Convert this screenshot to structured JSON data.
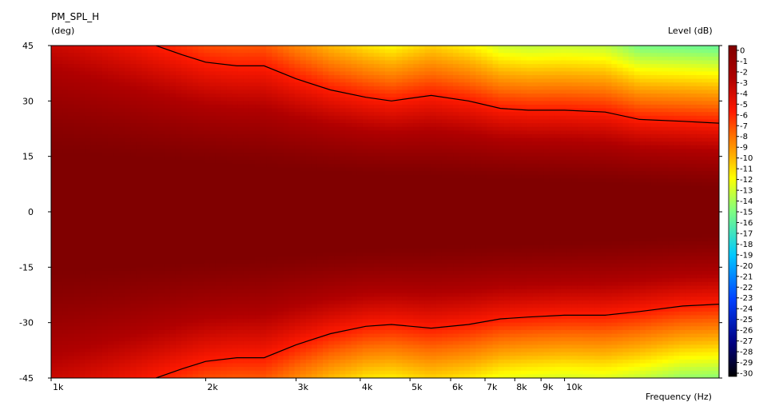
{
  "chart_data": {
    "type": "heatmap",
    "title": "PM_SPL_H",
    "ylabel": "(deg)",
    "xlabel": "Frequency  (Hz)",
    "colorbar_label": "Level  (dB)",
    "x_scale": "log",
    "xlim": [
      1000,
      20000
    ],
    "ylim": [
      -45,
      45
    ],
    "y_ticks": [
      45,
      30,
      15,
      0,
      -15,
      -30,
      -45
    ],
    "x_ticks": [
      {
        "value": 1000,
        "label": "1k"
      },
      {
        "value": 2000,
        "label": "2k"
      },
      {
        "value": 3000,
        "label": "3k"
      },
      {
        "value": 4000,
        "label": "4k"
      },
      {
        "value": 5000,
        "label": "5k"
      },
      {
        "value": 6000,
        "label": "6k"
      },
      {
        "value": 7000,
        "label": "7k"
      },
      {
        "value": 8000,
        "label": "8k"
      },
      {
        "value": 9000,
        "label": "9k"
      },
      {
        "value": 10000,
        "label": "10k"
      }
    ],
    "colorbar_range": [
      -30,
      0
    ],
    "colorbar_ticks": [
      0,
      -1,
      -2,
      -3,
      -4,
      -5,
      -6,
      -7,
      -8,
      -9,
      -10,
      -11,
      -12,
      -13,
      -14,
      -15,
      -16,
      -17,
      -18,
      -19,
      -20,
      -21,
      -22,
      -23,
      -24,
      -25,
      -26,
      -27,
      -28,
      -29,
      -30
    ],
    "contour_level_db": -6,
    "contour_upper": {
      "freq_hz": [
        1600,
        1800,
        2000,
        2300,
        2600,
        3000,
        3500,
        4100,
        4600,
        5500,
        6500,
        7500,
        8500,
        10000,
        12000,
        14000,
        17000,
        20000
      ],
      "angle_deg": [
        45,
        42.5,
        40.5,
        39.5,
        39.5,
        36,
        33,
        31,
        30,
        31.5,
        30,
        28,
        27.5,
        27.5,
        27,
        25,
        24.5,
        24
      ]
    },
    "contour_lower": {
      "freq_hz": [
        1600,
        1800,
        2000,
        2300,
        2600,
        3000,
        3500,
        4100,
        4600,
        5500,
        6500,
        7500,
        8500,
        10000,
        12000,
        14000,
        17000,
        20000
      ],
      "angle_deg": [
        -45,
        -42.5,
        -40.5,
        -39.5,
        -39.5,
        -36,
        -33,
        -31,
        -30.5,
        -31.5,
        -30.5,
        -29,
        -28.5,
        -28,
        -28,
        -27,
        -25.5,
        -25
      ]
    },
    "beamwidth_zero_dB_region_deg": {
      "freq_hz": [
        1000,
        2000,
        4000,
        10000,
        20000
      ],
      "half_width_deg": [
        16,
        13,
        10,
        8,
        6
      ]
    },
    "colormap": [
      {
        "db": 0,
        "color": "#800000"
      },
      {
        "db": -3,
        "color": "#b00000"
      },
      {
        "db": -6,
        "color": "#ff1a00"
      },
      {
        "db": -8,
        "color": "#ff6a00"
      },
      {
        "db": -10,
        "color": "#ffb000"
      },
      {
        "db": -12,
        "color": "#ffff00"
      },
      {
        "db": -15,
        "color": "#80ff80"
      },
      {
        "db": -19,
        "color": "#00c8ff"
      },
      {
        "db": -23,
        "color": "#0040ff"
      },
      {
        "db": -27,
        "color": "#000080"
      },
      {
        "db": -30,
        "color": "#000000"
      }
    ]
  }
}
